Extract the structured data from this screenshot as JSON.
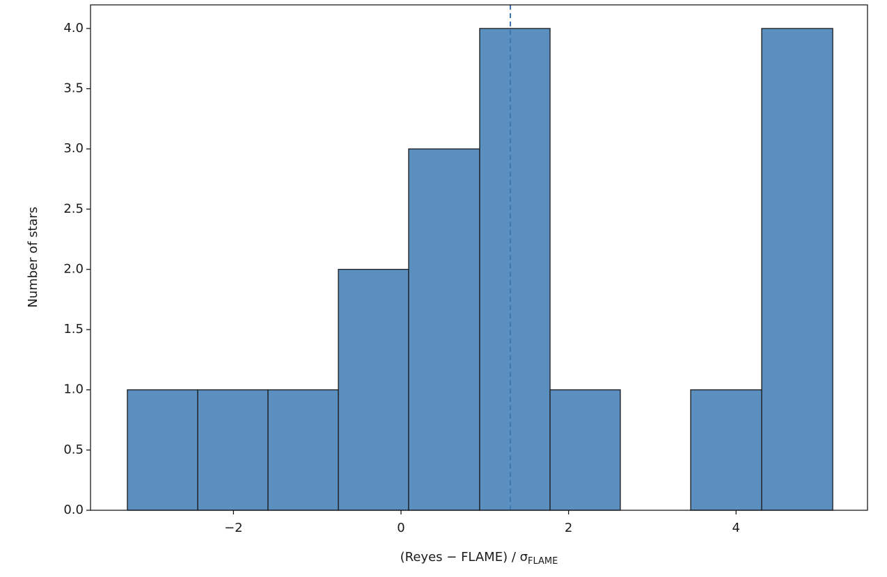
{
  "chart_data": {
    "type": "histogram",
    "bins": [
      -3.267,
      -2.427,
      -1.588,
      -0.748,
      0.091,
      0.939,
      1.779,
      2.618,
      3.458,
      4.306,
      5.154
    ],
    "counts": [
      1,
      1,
      1,
      2,
      3,
      4,
      1,
      0,
      1,
      4
    ],
    "color": "#5b8fc0",
    "edgecolor": "#1a1a1a",
    "vline": 1.305,
    "vline_color": "#3f78b0",
    "xlim": [
      -3.707,
      5.569
    ],
    "ylim": [
      0,
      4.196
    ],
    "xticks": [
      {
        "value": -2,
        "label": "−2"
      },
      0,
      2,
      4
    ],
    "yticks": [
      {
        "value": 0,
        "label": "0.0"
      },
      {
        "value": 0.5,
        "label": "0.5"
      },
      {
        "value": 1,
        "label": "1.0"
      },
      {
        "value": 1.5,
        "label": "1.5"
      },
      {
        "value": 2,
        "label": "2.0"
      },
      {
        "value": 2.5,
        "label": "2.5"
      },
      {
        "value": 3,
        "label": "3.0"
      },
      {
        "value": 3.5,
        "label": "3.5"
      },
      {
        "value": 4,
        "label": "4.0"
      }
    ],
    "x_label": "(Reyes − FLAME) / σ",
    "x_label_sub": "FLAME",
    "y_label": "Number of stars"
  }
}
